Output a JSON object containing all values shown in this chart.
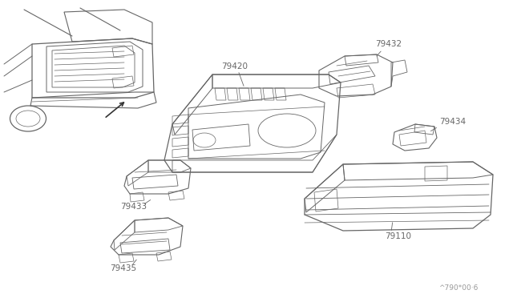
{
  "bg_color": "#ffffff",
  "line_color": "#666666",
  "text_color": "#666666",
  "watermark": "^790*00·6",
  "fig_w": 6.4,
  "fig_h": 3.72,
  "dpi": 100
}
